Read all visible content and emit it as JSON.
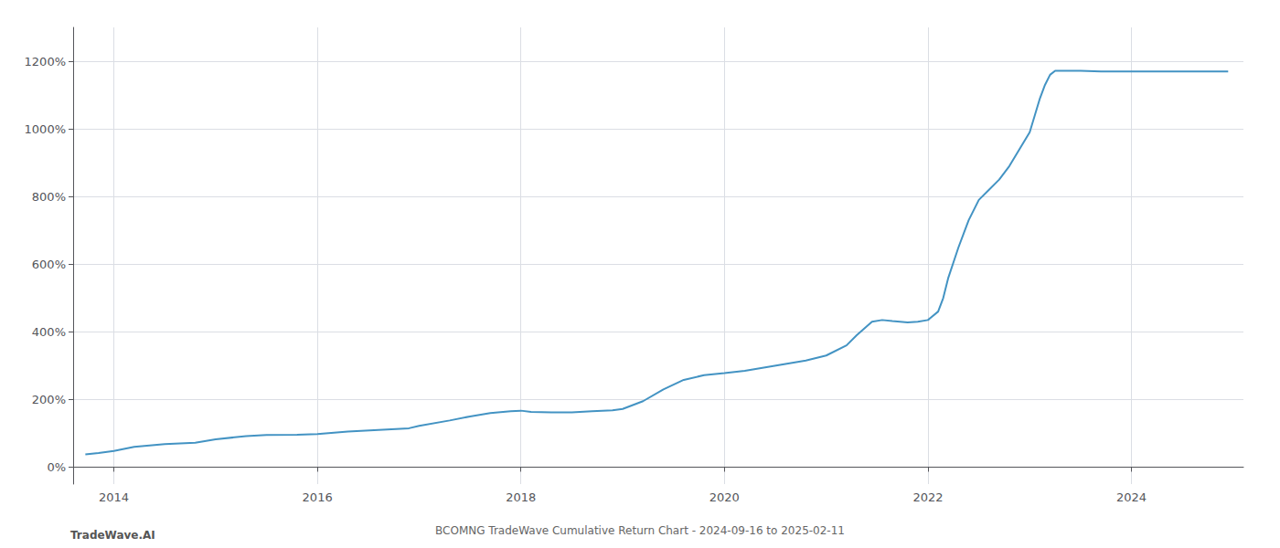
{
  "chart_data": {
    "type": "line",
    "title": "BCOMNG TradeWave Cumulative Return Chart - 2024-09-16 to 2025-02-11",
    "annotations": [
      "TradeWave.AI"
    ],
    "color": "#4393c3",
    "grid": true,
    "xlim": [
      2013.6,
      2025.1
    ],
    "xticks": [
      2014,
      2016,
      2018,
      2020,
      2022,
      2024
    ],
    "ylim": [
      -50,
      1300
    ],
    "yticks": [
      {
        "value": 0,
        "label": "0%"
      },
      {
        "value": 200,
        "label": "200%"
      },
      {
        "value": 400,
        "label": "400%"
      },
      {
        "value": 600,
        "label": "600%"
      },
      {
        "value": 800,
        "label": "800%"
      },
      {
        "value": 1000,
        "label": "1000%"
      },
      {
        "value": 1200,
        "label": "1200%"
      }
    ],
    "x": [
      2013.72,
      2013.85,
      2014.0,
      2014.2,
      2014.5,
      2014.8,
      2015.0,
      2015.3,
      2015.5,
      2015.8,
      2016.0,
      2016.3,
      2016.6,
      2016.9,
      2017.0,
      2017.3,
      2017.5,
      2017.7,
      2017.9,
      2018.0,
      2018.1,
      2018.3,
      2018.5,
      2018.7,
      2018.9,
      2019.0,
      2019.2,
      2019.4,
      2019.6,
      2019.8,
      2020.0,
      2020.2,
      2020.4,
      2020.6,
      2020.8,
      2021.0,
      2021.2,
      2021.3,
      2021.45,
      2021.55,
      2021.65,
      2021.8,
      2021.9,
      2022.0,
      2022.1,
      2022.15,
      2022.2,
      2022.3,
      2022.4,
      2022.5,
      2022.6,
      2022.7,
      2022.8,
      2022.9,
      2023.0,
      2023.05,
      2023.1,
      2023.15,
      2023.2,
      2023.25,
      2023.3,
      2023.5,
      2023.7,
      2023.9,
      2024.0,
      2024.2,
      2024.4,
      2024.6,
      2024.8,
      2024.95
    ],
    "values": [
      38,
      42,
      48,
      60,
      68,
      72,
      82,
      92,
      95,
      96,
      98,
      105,
      110,
      115,
      122,
      138,
      150,
      160,
      165,
      167,
      163,
      162,
      162,
      165,
      168,
      172,
      195,
      230,
      258,
      272,
      278,
      285,
      295,
      305,
      315,
      330,
      360,
      390,
      430,
      435,
      432,
      428,
      430,
      435,
      460,
      500,
      560,
      650,
      730,
      790,
      820,
      850,
      890,
      940,
      990,
      1040,
      1090,
      1130,
      1160,
      1172,
      1172,
      1172,
      1170,
      1170,
      1170,
      1170,
      1170,
      1170,
      1170,
      1170
    ]
  }
}
